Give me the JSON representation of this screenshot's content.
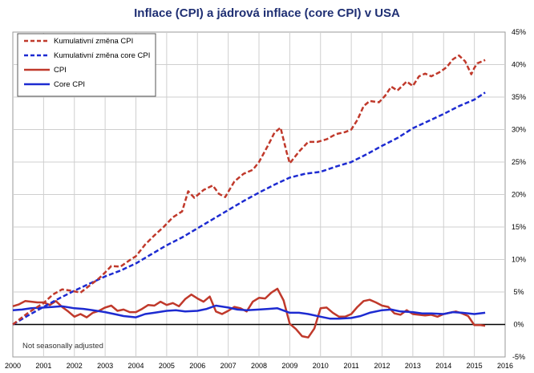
{
  "chart_data": {
    "type": "line",
    "title": "Inflace (CPI) a jádrová inflace (core CPI) v USA",
    "annotation": "Not seasonally adjusted",
    "xlim": [
      2000,
      2016
    ],
    "ylim": [
      -5,
      45
    ],
    "x_ticks": [
      "2000",
      "2001",
      "2002",
      "2003",
      "2004",
      "2005",
      "2006",
      "2007",
      "2008",
      "2009",
      "2010",
      "2011",
      "2012",
      "2013",
      "2014",
      "2015",
      "2016"
    ],
    "y_ticks": [
      "-5%",
      "0%",
      "5%",
      "10%",
      "15%",
      "20%",
      "25%",
      "30%",
      "35%",
      "40%",
      "45%"
    ],
    "grid": true,
    "legend_position": "top-left",
    "series": [
      {
        "name": "Kumulativní změna CPI",
        "color": "#c0392b",
        "style": "dashed",
        "x": [
          2000.0,
          2000.5,
          2001.0,
          2001.3,
          2001.6,
          2001.9,
          2002.2,
          2002.5,
          2002.8,
          2003.0,
          2003.2,
          2003.5,
          2003.8,
          2004.0,
          2004.3,
          2004.6,
          2004.9,
          2005.2,
          2005.5,
          2005.7,
          2005.9,
          2006.2,
          2006.5,
          2006.7,
          2006.9,
          2007.2,
          2007.5,
          2007.8,
          2008.0,
          2008.3,
          2008.5,
          2008.7,
          2008.9,
          2009.0,
          2009.3,
          2009.6,
          2009.9,
          2010.2,
          2010.5,
          2010.8,
          2011.0,
          2011.2,
          2011.4,
          2011.6,
          2011.9,
          2012.1,
          2012.3,
          2012.5,
          2012.8,
          2013.0,
          2013.2,
          2013.4,
          2013.6,
          2013.9,
          2014.1,
          2014.3,
          2014.5,
          2014.7,
          2014.9,
          2015.0,
          2015.1,
          2015.2,
          2015.35
        ],
        "values": [
          0,
          1.8,
          3.3,
          4.6,
          5.4,
          5.2,
          4.9,
          6.0,
          7.1,
          8.0,
          9.0,
          8.9,
          9.9,
          10.5,
          12.3,
          13.7,
          15.0,
          16.5,
          17.4,
          20.5,
          19.5,
          20.7,
          21.4,
          20.1,
          19.6,
          22.0,
          23.2,
          23.8,
          25.0,
          27.6,
          29.5,
          30.3,
          26.5,
          24.8,
          26.6,
          28.1,
          28.1,
          28.5,
          29.3,
          29.6,
          30.0,
          31.5,
          33.6,
          34.4,
          34.2,
          35.2,
          36.6,
          36.0,
          37.4,
          36.7,
          38.2,
          38.6,
          38.2,
          38.9,
          39.6,
          40.8,
          41.4,
          40.5,
          38.5,
          39.5,
          40.2,
          40.4,
          40.7
        ]
      },
      {
        "name": "Kumulativní změna core CPI",
        "color": "#1d2bd1",
        "style": "dashed",
        "x": [
          2000.0,
          2000.5,
          2001.0,
          2001.5,
          2002.0,
          2002.5,
          2003.0,
          2003.5,
          2004.0,
          2004.5,
          2005.0,
          2005.5,
          2006.0,
          2006.5,
          2007.0,
          2007.5,
          2008.0,
          2008.5,
          2009.0,
          2009.5,
          2010.0,
          2010.5,
          2011.0,
          2011.5,
          2012.0,
          2012.5,
          2013.0,
          2013.5,
          2014.0,
          2014.5,
          2015.0,
          2015.35
        ],
        "values": [
          0,
          1.4,
          2.7,
          4.0,
          5.2,
          6.3,
          7.4,
          8.3,
          9.4,
          10.8,
          12.2,
          13.4,
          14.8,
          16.2,
          17.6,
          19.0,
          20.3,
          21.5,
          22.6,
          23.2,
          23.5,
          24.3,
          25.0,
          26.2,
          27.5,
          28.7,
          30.2,
          31.3,
          32.4,
          33.6,
          34.6,
          35.7
        ]
      },
      {
        "name": "CPI",
        "color": "#c0392b",
        "style": "solid",
        "x": [
          2000.0,
          2000.2,
          2000.4,
          2000.6,
          2000.8,
          2001.0,
          2001.2,
          2001.4,
          2001.6,
          2001.8,
          2002.0,
          2002.2,
          2002.4,
          2002.6,
          2002.8,
          2003.0,
          2003.2,
          2003.4,
          2003.6,
          2003.8,
          2004.0,
          2004.2,
          2004.4,
          2004.6,
          2004.8,
          2005.0,
          2005.2,
          2005.4,
          2005.6,
          2005.8,
          2006.0,
          2006.2,
          2006.4,
          2006.6,
          2006.8,
          2007.0,
          2007.2,
          2007.4,
          2007.6,
          2007.8,
          2008.0,
          2008.2,
          2008.4,
          2008.6,
          2008.8,
          2009.0,
          2009.2,
          2009.4,
          2009.6,
          2009.8,
          2010.0,
          2010.2,
          2010.4,
          2010.6,
          2010.8,
          2011.0,
          2011.2,
          2011.4,
          2011.6,
          2011.8,
          2012.0,
          2012.2,
          2012.4,
          2012.6,
          2012.8,
          2013.0,
          2013.2,
          2013.4,
          2013.6,
          2013.8,
          2014.0,
          2014.2,
          2014.4,
          2014.6,
          2014.8,
          2015.0,
          2015.2,
          2015.35
        ],
        "values": [
          2.8,
          3.1,
          3.6,
          3.5,
          3.4,
          3.4,
          3.0,
          3.6,
          2.7,
          2.0,
          1.2,
          1.6,
          1.1,
          1.8,
          2.1,
          2.6,
          2.9,
          2.1,
          2.3,
          1.9,
          1.9,
          2.4,
          3.0,
          2.9,
          3.5,
          3.0,
          3.3,
          2.8,
          3.9,
          4.6,
          4.0,
          3.5,
          4.3,
          2.0,
          1.6,
          2.1,
          2.7,
          2.5,
          2.0,
          3.5,
          4.1,
          4.0,
          4.9,
          5.5,
          3.7,
          0.1,
          -0.7,
          -1.8,
          -2.0,
          -0.6,
          2.5,
          2.6,
          1.8,
          1.2,
          1.2,
          1.6,
          2.7,
          3.6,
          3.8,
          3.4,
          2.9,
          2.7,
          1.7,
          1.5,
          2.2,
          1.6,
          1.5,
          1.4,
          1.5,
          1.2,
          1.6,
          1.8,
          2.0,
          1.7,
          1.3,
          -0.1,
          -0.1,
          -0.2
        ]
      },
      {
        "name": "Core CPI",
        "color": "#1d2bd1",
        "style": "solid",
        "x": [
          2000.0,
          2000.3,
          2000.6,
          2001.0,
          2001.3,
          2001.6,
          2002.0,
          2002.3,
          2002.6,
          2003.0,
          2003.3,
          2003.6,
          2004.0,
          2004.3,
          2004.6,
          2005.0,
          2005.3,
          2005.6,
          2006.0,
          2006.3,
          2006.6,
          2007.0,
          2007.3,
          2007.6,
          2008.0,
          2008.3,
          2008.6,
          2009.0,
          2009.3,
          2009.6,
          2010.0,
          2010.3,
          2010.6,
          2011.0,
          2011.3,
          2011.6,
          2012.0,
          2012.3,
          2012.6,
          2013.0,
          2013.3,
          2013.6,
          2014.0,
          2014.3,
          2014.6,
          2015.0,
          2015.35
        ],
        "values": [
          2.2,
          2.3,
          2.5,
          2.6,
          2.7,
          2.8,
          2.5,
          2.4,
          2.2,
          1.9,
          1.6,
          1.3,
          1.1,
          1.6,
          1.8,
          2.1,
          2.2,
          2.0,
          2.1,
          2.4,
          2.9,
          2.6,
          2.3,
          2.2,
          2.3,
          2.4,
          2.5,
          1.8,
          1.8,
          1.6,
          1.2,
          0.9,
          0.9,
          1.0,
          1.3,
          1.8,
          2.2,
          2.3,
          2.0,
          1.9,
          1.7,
          1.7,
          1.6,
          1.9,
          1.8,
          1.6,
          1.8
        ]
      }
    ]
  }
}
